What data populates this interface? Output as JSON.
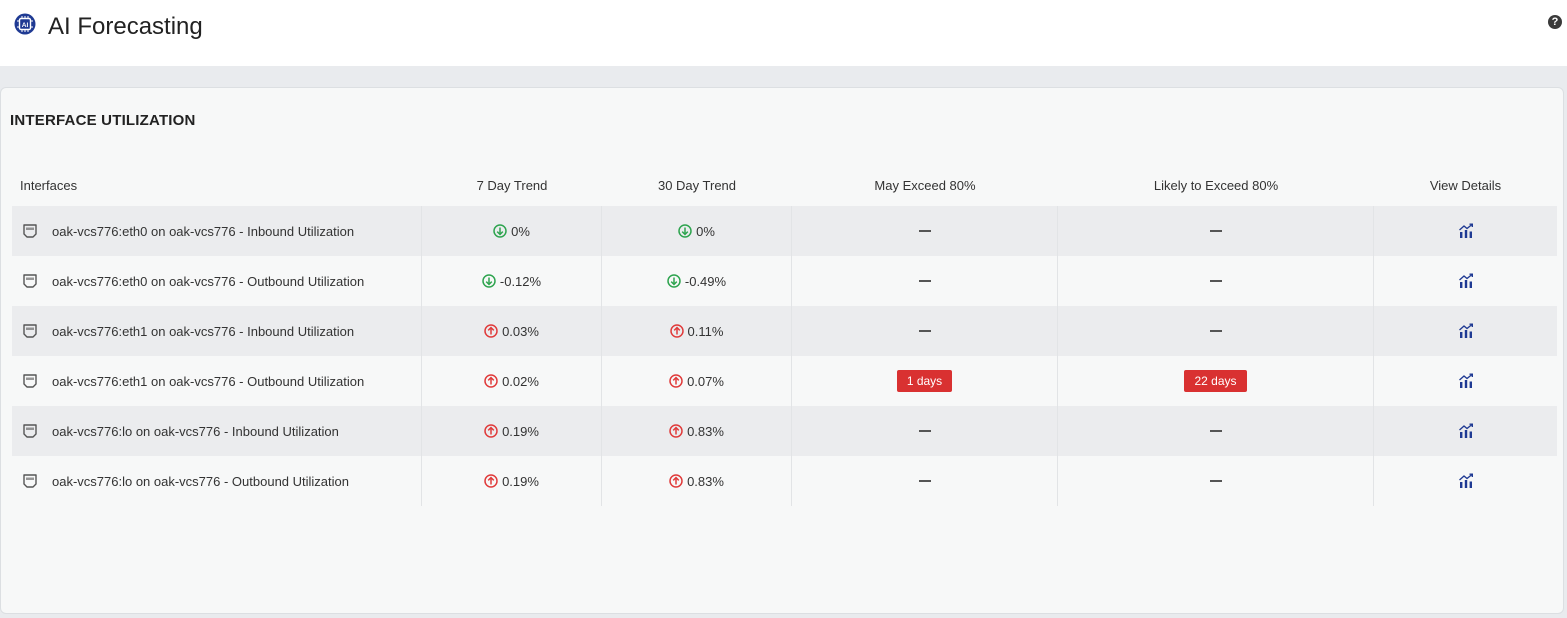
{
  "app": {
    "title": "AI Forecasting",
    "logo_icon": "ai-chip-icon",
    "help_icon": "question-icon",
    "help_glyph": "?"
  },
  "panel": {
    "title": "INTERFACE UTILIZATION",
    "columns": [
      "Interfaces",
      "7 Day Trend",
      "30 Day Trend",
      "May Exceed 80%",
      "Likely to Exceed 80%",
      "View Details"
    ]
  },
  "rows": [
    {
      "interface": "oak-vcs776:eth0 on oak-vcs776 - Inbound Utilization",
      "trend7": "0%",
      "trend7_dir": "down",
      "trend30": "0%",
      "trend30_dir": "down",
      "may_exceed": "",
      "likely_exceed": ""
    },
    {
      "interface": "oak-vcs776:eth0 on oak-vcs776 - Outbound Utilization",
      "trend7": "-0.12%",
      "trend7_dir": "down",
      "trend30": "-0.49%",
      "trend30_dir": "down",
      "may_exceed": "",
      "likely_exceed": ""
    },
    {
      "interface": "oak-vcs776:eth1 on oak-vcs776 - Inbound Utilization",
      "trend7": "0.03%",
      "trend7_dir": "up",
      "trend30": "0.11%",
      "trend30_dir": "up",
      "may_exceed": "",
      "likely_exceed": ""
    },
    {
      "interface": "oak-vcs776:eth1 on oak-vcs776 - Outbound Utilization",
      "trend7": "0.02%",
      "trend7_dir": "up",
      "trend30": "0.07%",
      "trend30_dir": "up",
      "may_exceed": "1 days",
      "likely_exceed": "22 days"
    },
    {
      "interface": "oak-vcs776:lo on oak-vcs776 - Inbound Utilization",
      "trend7": "0.19%",
      "trend7_dir": "up",
      "trend30": "0.83%",
      "trend30_dir": "up",
      "may_exceed": "",
      "likely_exceed": ""
    },
    {
      "interface": "oak-vcs776:lo on oak-vcs776 - Outbound Utilization",
      "trend7": "0.19%",
      "trend7_dir": "up",
      "trend30": "0.83%",
      "trend30_dir": "up",
      "may_exceed": "",
      "likely_exceed": ""
    }
  ],
  "icons": {
    "interface": "ethernet-port-icon",
    "trend_down": "arrow-down-circle-icon",
    "trend_up": "arrow-up-circle-icon",
    "view_details": "chart-trend-icon"
  },
  "colors": {
    "trend_down": "#2ea44f",
    "trend_up": "#e03b3b",
    "badge": "#d93131",
    "details_icon": "#1f3a93"
  }
}
